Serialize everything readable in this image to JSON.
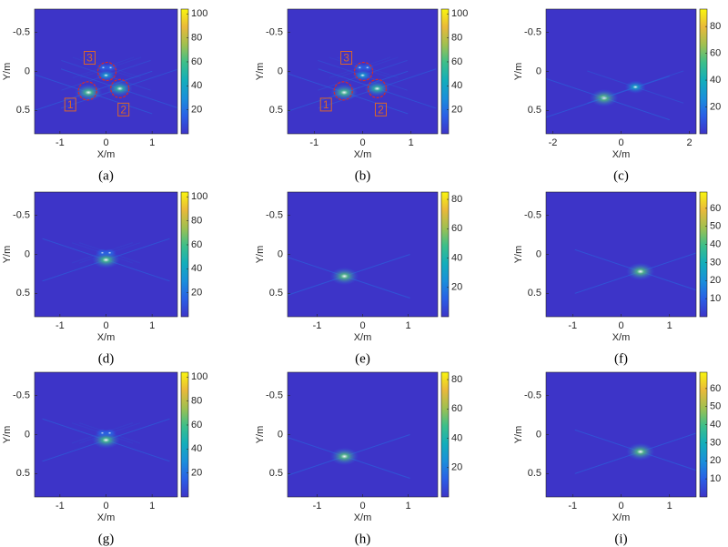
{
  "colormap": [
    "#3d34c8",
    "#2a5fe6",
    "#1a8fdb",
    "#13aebb",
    "#3dbf8a",
    "#a0c050",
    "#e9b93a",
    "#f9f50f"
  ],
  "chart_data": [
    {
      "type": "heatmap",
      "caption": "(a)",
      "xlabel": "X/m",
      "ylabel": "Y/m",
      "xlim": [
        -1.55,
        1.55
      ],
      "xticks": [
        -1,
        0,
        1
      ],
      "ylim": [
        -0.8,
        0.8
      ],
      "yticks": [
        -0.5,
        0,
        0.5
      ],
      "y_reversed": true,
      "clim": [
        0,
        104
      ],
      "cticks": [
        20,
        40,
        60,
        80,
        100
      ],
      "peaks": [
        {
          "x": -0.38,
          "y": 0.27,
          "value": 100
        },
        {
          "x": 0.3,
          "y": 0.22,
          "value": 90
        },
        {
          "x": 0.0,
          "y": 0.05,
          "value": 60
        },
        {
          "x": -0.06,
          "y": -0.05,
          "value": 30
        },
        {
          "x": 0.1,
          "y": -0.05,
          "value": 30
        }
      ],
      "annotations": [
        {
          "text": "1",
          "x": -0.4,
          "y": 0.25
        },
        {
          "text": "2",
          "x": 0.3,
          "y": 0.22
        },
        {
          "text": "3",
          "x": 0.02,
          "y": 0.0
        }
      ]
    },
    {
      "type": "heatmap",
      "caption": "(b)",
      "xlabel": "X/m",
      "ylabel": "Y/m",
      "xlim": [
        -1.55,
        1.55
      ],
      "xticks": [
        -1,
        0,
        1
      ],
      "ylim": [
        -0.8,
        0.8
      ],
      "yticks": [
        -0.5,
        0,
        0.5
      ],
      "y_reversed": true,
      "clim": [
        0,
        104
      ],
      "cticks": [
        20,
        40,
        60,
        80,
        100
      ],
      "peaks": [
        {
          "x": -0.38,
          "y": 0.27,
          "value": 100
        },
        {
          "x": 0.3,
          "y": 0.22,
          "value": 90
        },
        {
          "x": 0.0,
          "y": 0.05,
          "value": 60
        },
        {
          "x": -0.06,
          "y": -0.05,
          "value": 30
        },
        {
          "x": 0.1,
          "y": -0.05,
          "value": 30
        }
      ],
      "annotations": [
        {
          "text": "1",
          "x": -0.4,
          "y": 0.25
        },
        {
          "text": "2",
          "x": 0.3,
          "y": 0.22
        },
        {
          "text": "3",
          "x": 0.02,
          "y": 0.0
        }
      ]
    },
    {
      "type": "heatmap",
      "caption": "(c)",
      "xlabel": "X/m",
      "ylabel": "Y/m",
      "xlim": [
        -2.2,
        2.2
      ],
      "xticks": [
        -2,
        0,
        2
      ],
      "ylim": [
        -0.8,
        0.8
      ],
      "yticks": [
        -0.5,
        0,
        0.5
      ],
      "y_reversed": true,
      "clim": [
        0,
        93
      ],
      "cticks": [
        20,
        40,
        60,
        80
      ],
      "peaks": [
        {
          "x": -0.5,
          "y": 0.34,
          "value": 93
        },
        {
          "x": 0.42,
          "y": 0.2,
          "value": 60
        }
      ]
    },
    {
      "type": "heatmap",
      "caption": "(d)",
      "xlabel": "X/m",
      "ylabel": "Y/m",
      "xlim": [
        -1.55,
        1.55
      ],
      "xticks": [
        -1,
        0,
        1
      ],
      "ylim": [
        -0.8,
        0.8
      ],
      "yticks": [
        -0.5,
        0,
        0.5
      ],
      "y_reversed": true,
      "clim": [
        0,
        104
      ],
      "cticks": [
        20,
        40,
        60,
        80,
        100
      ],
      "peaks": [
        {
          "x": 0.0,
          "y": 0.07,
          "value": 100
        },
        {
          "x": -0.08,
          "y": -0.02,
          "value": 30
        },
        {
          "x": 0.08,
          "y": -0.02,
          "value": 30
        }
      ]
    },
    {
      "type": "heatmap",
      "caption": "(e)",
      "xlabel": "X/m",
      "ylabel": "Y/m",
      "xlim": [
        -1.65,
        1.65
      ],
      "xticks": [
        -1,
        0,
        1
      ],
      "ylim": [
        -0.8,
        0.8
      ],
      "yticks": [
        -0.5,
        0,
        0.5
      ],
      "y_reversed": true,
      "clim": [
        0,
        85
      ],
      "cticks": [
        20,
        40,
        60,
        80
      ],
      "peaks": [
        {
          "x": -0.4,
          "y": 0.28,
          "value": 85
        }
      ]
    },
    {
      "type": "heatmap",
      "caption": "(f)",
      "xlabel": "X/m",
      "ylabel": "Y/m",
      "xlim": [
        -1.55,
        1.55
      ],
      "xticks": [
        -1,
        0,
        1
      ],
      "ylim": [
        -0.8,
        0.8
      ],
      "yticks": [
        -0.5,
        0,
        0.5
      ],
      "y_reversed": true,
      "clim": [
        0,
        69
      ],
      "cticks": [
        10,
        20,
        30,
        40,
        50,
        60
      ],
      "peaks": [
        {
          "x": 0.4,
          "y": 0.22,
          "value": 69
        }
      ]
    },
    {
      "type": "heatmap",
      "caption": "(g)",
      "xlabel": "X/m",
      "ylabel": "Y/m",
      "xlim": [
        -1.55,
        1.55
      ],
      "xticks": [
        -1,
        0,
        1
      ],
      "ylim": [
        -0.8,
        0.8
      ],
      "yticks": [
        -0.5,
        0,
        0.5
      ],
      "y_reversed": true,
      "clim": [
        0,
        104
      ],
      "cticks": [
        20,
        40,
        60,
        80,
        100
      ],
      "peaks": [
        {
          "x": 0.0,
          "y": 0.07,
          "value": 100
        },
        {
          "x": -0.08,
          "y": -0.02,
          "value": 30
        },
        {
          "x": 0.08,
          "y": -0.02,
          "value": 30
        }
      ]
    },
    {
      "type": "heatmap",
      "caption": "(h)",
      "xlabel": "X/m",
      "ylabel": "Y/m",
      "xlim": [
        -1.65,
        1.65
      ],
      "xticks": [
        -1,
        0,
        1
      ],
      "ylim": [
        -0.8,
        0.8
      ],
      "yticks": [
        -0.5,
        0,
        0.5
      ],
      "y_reversed": true,
      "clim": [
        0,
        85
      ],
      "cticks": [
        20,
        40,
        60,
        80
      ],
      "peaks": [
        {
          "x": -0.4,
          "y": 0.28,
          "value": 85
        }
      ]
    },
    {
      "type": "heatmap",
      "caption": "(i)",
      "xlabel": "X/m",
      "ylabel": "Y/m",
      "xlim": [
        -1.55,
        1.55
      ],
      "xticks": [
        -1,
        0,
        1
      ],
      "ylim": [
        -0.8,
        0.8
      ],
      "yticks": [
        -0.5,
        0,
        0.5
      ],
      "y_reversed": true,
      "clim": [
        0,
        69
      ],
      "cticks": [
        10,
        20,
        30,
        40,
        50,
        60
      ],
      "peaks": [
        {
          "x": 0.4,
          "y": 0.22,
          "value": 69
        }
      ]
    }
  ]
}
